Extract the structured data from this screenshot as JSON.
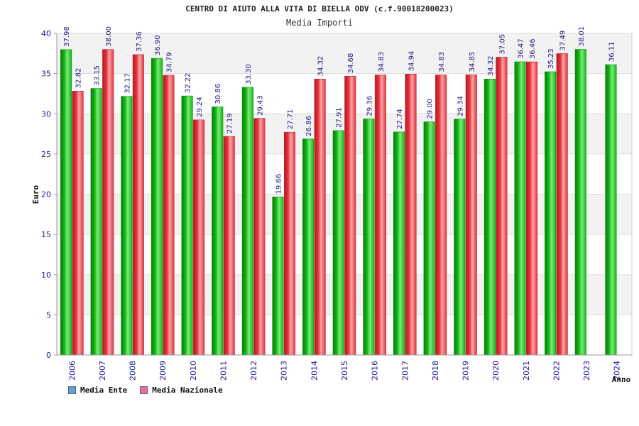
{
  "chart_data": {
    "type": "bar",
    "title": "CENTRO DI AIUTO ALLA VITA DI BIELLA ODV (c.f.90018200023)",
    "subtitle": "Media Importi",
    "xlabel": "Anno",
    "ylabel": "Euro",
    "ylim": [
      0,
      40
    ],
    "yticks": [
      "0",
      "5",
      "10",
      "15",
      "20",
      "25",
      "30",
      "35",
      "40"
    ],
    "grid": true,
    "legend_position": "bottom-left",
    "categories": [
      "2006",
      "2007",
      "2008",
      "2009",
      "2010",
      "2011",
      "2012",
      "2013",
      "2014",
      "2015",
      "2016",
      "2017",
      "2018",
      "2019",
      "2020",
      "2021",
      "2022",
      "2023",
      "2024"
    ],
    "series": [
      {
        "name": "Media Ente",
        "color": "#12b812",
        "legend_color": "#5aa0e6",
        "values": [
          37.98,
          33.15,
          32.17,
          36.9,
          32.22,
          30.86,
          33.3,
          19.66,
          26.86,
          27.91,
          29.36,
          27.74,
          29.0,
          29.34,
          34.32,
          36.47,
          35.23,
          38.01,
          36.11
        ],
        "labels": [
          "37.98",
          "33.15",
          "32.17",
          "36.90",
          "32.22",
          "30.86",
          "33.30",
          "19.66",
          "26.86",
          "27.91",
          "29.36",
          "27.74",
          "29.00",
          "29.34",
          "34.32",
          "36.47",
          "35.23",
          "38.01",
          "36.11"
        ]
      },
      {
        "name": "Media Nazionale",
        "color": "#e8323c",
        "legend_color": "#e070a8",
        "values": [
          32.82,
          38.0,
          37.36,
          34.79,
          29.24,
          27.19,
          29.43,
          27.71,
          34.32,
          34.68,
          34.83,
          34.94,
          34.83,
          34.85,
          37.05,
          36.46,
          37.49,
          null,
          null
        ],
        "labels": [
          "32.82",
          "38.00",
          "37.36",
          "34.79",
          "29.24",
          "27.19",
          "29.43",
          "27.71",
          "34.32",
          "34.68",
          "34.83",
          "34.94",
          "34.83",
          "34.85",
          "37.05",
          "36.46",
          "37.49",
          null,
          null
        ]
      }
    ]
  }
}
